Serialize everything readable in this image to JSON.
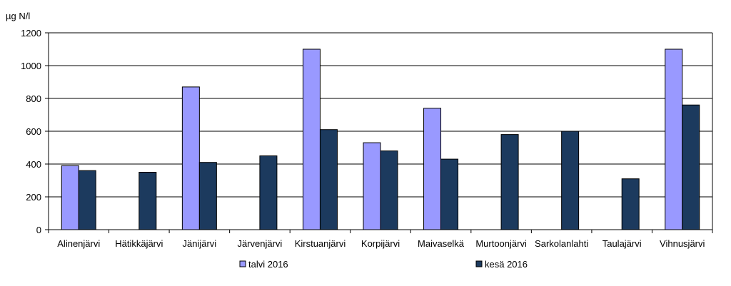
{
  "chart_data": {
    "type": "bar",
    "unit_label": "µg N/l",
    "categories": [
      "Alinenjärvi",
      "Hätikkäjärvi",
      "Jänijärvi",
      "Järvenjärvi",
      "Kirstuanjärvi",
      "Korpijärvi",
      "Maivaselkä",
      "Murtoonjärvi",
      "Sarkolanlahti",
      "Taulajärvi",
      "Vihnusjärvi"
    ],
    "series": [
      {
        "name": "talvi 2016",
        "color": "#9999ff",
        "values": [
          390,
          null,
          870,
          null,
          1100,
          530,
          740,
          null,
          null,
          null,
          1100
        ]
      },
      {
        "name": "kesä 2016",
        "color": "#1c3a5e",
        "values": [
          360,
          350,
          410,
          450,
          610,
          480,
          430,
          580,
          600,
          310,
          760
        ]
      }
    ],
    "ylim": [
      0,
      1200
    ],
    "yticks": [
      0,
      200,
      400,
      600,
      800,
      1000,
      1200
    ],
    "grid": true,
    "legend_position": "bottom"
  }
}
